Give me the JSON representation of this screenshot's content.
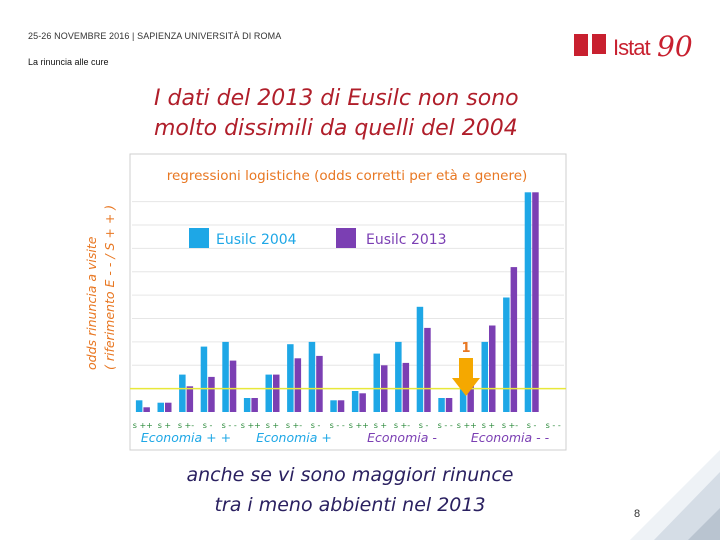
{
  "header": {
    "event": "25-26 NOVEMBRE 2016 | SAPIENZA UNIVERSITÀ DI ROMA",
    "section": "La rinuncia alle cure"
  },
  "logo": {
    "text": "Istat",
    "number": "90"
  },
  "title": {
    "line1": "I dati del 2013 di Eusilc non sono",
    "line2": "molto dissimili da quelli del 2004"
  },
  "caption": {
    "line1": "anche se vi sono maggiori rinunce",
    "line2": "tra i meno abbienti nel 2013"
  },
  "page_number": "8",
  "colors": {
    "s2004": "#1ea7e6",
    "s2013": "#7b3fb3",
    "accent": "#e87722",
    "title": "#b01e2a",
    "group": "#7b3fb3",
    "baseline": "#e8e83a"
  },
  "chart_data": {
    "type": "bar",
    "title": "regressioni logistiche (odds corretti per età e genere)",
    "ylabel_line1": "odds rinuncia a visite",
    "ylabel_line2": "( riferimento E - - / S + + )",
    "ylim": [
      0,
      9.5
    ],
    "reference_value": 1,
    "reference_label": "1",
    "categories": [
      "s ++",
      "s +",
      "s +-",
      "s -",
      "s - -",
      "s ++",
      "s +",
      "s +-",
      "s -",
      "s - -",
      "s ++",
      "s +",
      "s +-",
      "s -",
      "s - -",
      "s ++",
      "s +",
      "s +-",
      "s -",
      "s - -"
    ],
    "series": [
      {
        "name": "Eusilc 2004",
        "values": [
          0.5,
          0.4,
          1.6,
          2.8,
          3.0,
          0.6,
          1.6,
          2.9,
          3.0,
          0.5,
          0.9,
          2.5,
          3.0,
          4.5,
          0.6,
          1.4,
          3.0,
          4.9,
          9.4,
          0.0
        ]
      },
      {
        "name": "Eusilc 2013",
        "values": [
          0.2,
          0.4,
          1.1,
          1.5,
          2.2,
          0.6,
          1.6,
          2.3,
          2.4,
          0.5,
          0.8,
          2.0,
          2.1,
          3.6,
          0.6,
          1.2,
          3.7,
          6.2,
          9.4,
          0.0
        ]
      }
    ],
    "groups": [
      "Economia + +",
      "Economia +",
      "Economia -",
      "Economia - -"
    ]
  }
}
